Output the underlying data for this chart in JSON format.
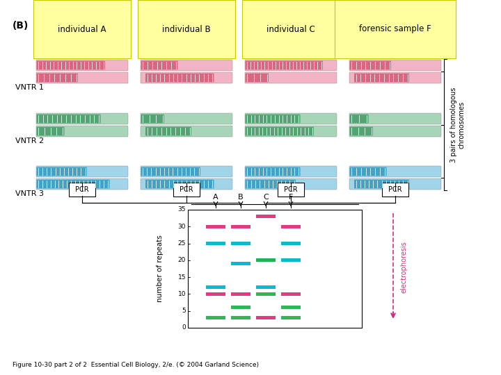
{
  "bg_color": "#ffffff",
  "individuals": [
    "individual A",
    "individual B",
    "individual C",
    "forensic sample F"
  ],
  "vntr_labels": [
    "VNTR 1",
    "VNTR 2",
    "VNTR 3"
  ],
  "pink_dark": "#d4607a",
  "pink_light": "#f0b4c4",
  "green_dark": "#4a9e6e",
  "green_light": "#a8d4b8",
  "blue_dark": "#3a9ec0",
  "blue_light": "#a0d4e8",
  "gel_yticks": [
    0,
    5,
    10,
    15,
    20,
    25,
    30,
    35
  ],
  "gel_ylabel": "number of repeats",
  "gel_columns": [
    "A",
    "B",
    "C",
    "F"
  ],
  "gel_bands": [
    {
      "col": 0,
      "y": 30,
      "color": "#e0307a"
    },
    {
      "col": 0,
      "y": 25,
      "color": "#00b4cc"
    },
    {
      "col": 0,
      "y": 12,
      "color": "#00b4cc"
    },
    {
      "col": 0,
      "y": 10,
      "color": "#e0307a"
    },
    {
      "col": 0,
      "y": 3,
      "color": "#28b050"
    },
    {
      "col": 1,
      "y": 30,
      "color": "#e0307a"
    },
    {
      "col": 1,
      "y": 25,
      "color": "#00b4cc"
    },
    {
      "col": 1,
      "y": 19,
      "color": "#00b4cc"
    },
    {
      "col": 1,
      "y": 10,
      "color": "#e0307a"
    },
    {
      "col": 1,
      "y": 6,
      "color": "#28b050"
    },
    {
      "col": 1,
      "y": 3,
      "color": "#28b050"
    },
    {
      "col": 2,
      "y": 33,
      "color": "#e0307a"
    },
    {
      "col": 2,
      "y": 20,
      "color": "#00b4cc"
    },
    {
      "col": 2,
      "y": 20,
      "color": "#28b050"
    },
    {
      "col": 2,
      "y": 12,
      "color": "#00b4cc"
    },
    {
      "col": 2,
      "y": 10,
      "color": "#28b050"
    },
    {
      "col": 2,
      "y": 3,
      "color": "#e0307a"
    },
    {
      "col": 3,
      "y": 30,
      "color": "#e0307a"
    },
    {
      "col": 3,
      "y": 25,
      "color": "#00b4cc"
    },
    {
      "col": 3,
      "y": 20,
      "color": "#00b4cc"
    },
    {
      "col": 3,
      "y": 10,
      "color": "#e0307a"
    },
    {
      "col": 3,
      "y": 6,
      "color": "#28b050"
    },
    {
      "col": 3,
      "y": 3,
      "color": "#28b050"
    }
  ],
  "figure_caption": "Figure 10-30 part 2 of 2  Essential Cell Biology, 2/e. (© 2004 Garland Science)"
}
